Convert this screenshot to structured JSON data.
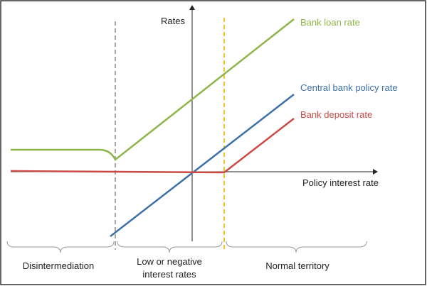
{
  "axes": {
    "y_label": "Rates",
    "x_label": "Policy interest rate"
  },
  "lines": [
    {
      "label": "Bank loan rate"
    },
    {
      "label": "Central bank policy rate"
    },
    {
      "label": "Bank deposit rate"
    }
  ],
  "regions": [
    {
      "label_lines": [
        "Disintermediation"
      ]
    },
    {
      "label_lines": [
        "Low or negative",
        "interest rates"
      ]
    },
    {
      "label_lines": [
        "Normal territory"
      ]
    }
  ]
}
